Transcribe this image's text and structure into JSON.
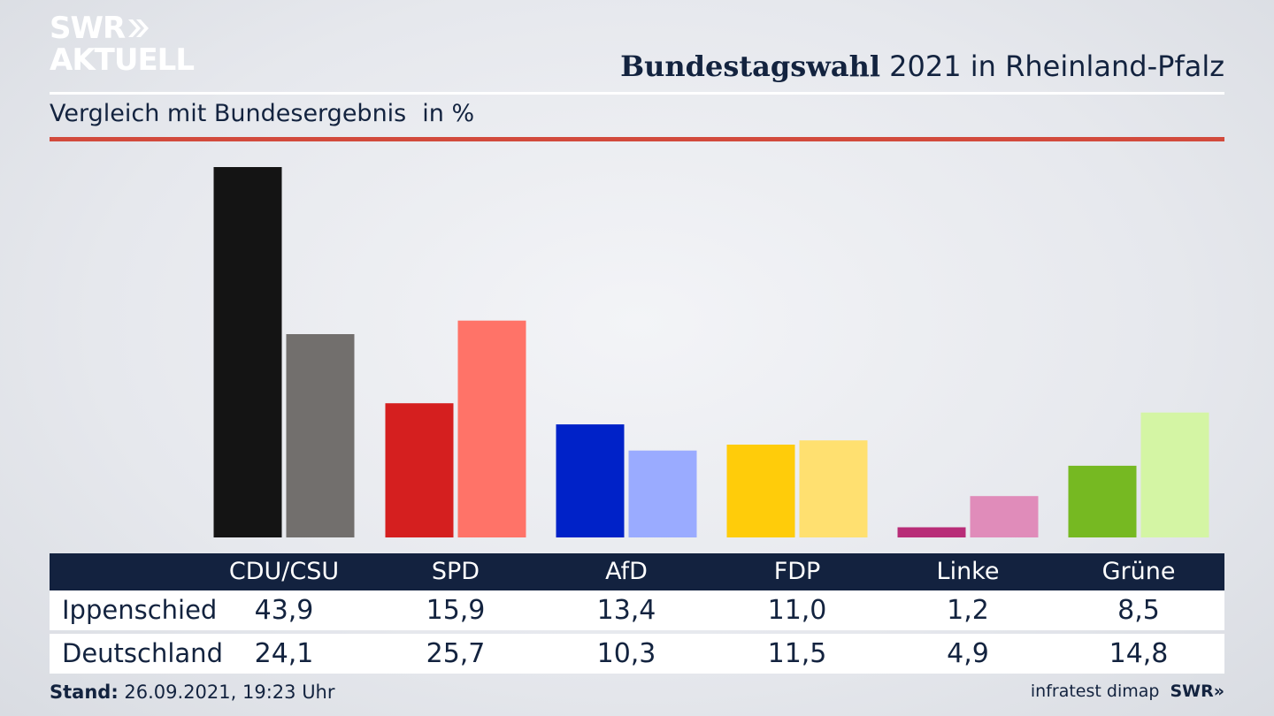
{
  "brand": {
    "line1": "SWR",
    "line2": "AKTUELL",
    "footer_logo": "SWR"
  },
  "header": {
    "title_bold": "Bundestagswahl",
    "title_rest": "2021 in Rheinland-Pfalz"
  },
  "subtitle": {
    "text": "Vergleich mit Bundesergebnis",
    "unit": "in %"
  },
  "footer": {
    "stand_label": "Stand:",
    "stand_value": "26.09.2021, 19:23 Uhr",
    "source": "infratest dimap"
  },
  "colors": {
    "navy": "#13223f",
    "accent_red": "#d24a3c"
  },
  "chart_data": {
    "type": "bar",
    "categories": [
      "CDU/CSU",
      "SPD",
      "AfD",
      "FDP",
      "Linke",
      "Grüne"
    ],
    "series": [
      {
        "name": "Ippenschied",
        "values": [
          43.9,
          15.9,
          13.4,
          11.0,
          1.2,
          8.5
        ],
        "colors": [
          "#141414",
          "#d51f1f",
          "#0022c8",
          "#ffcc0a",
          "#b82d78",
          "#76b922"
        ]
      },
      {
        "name": "Deutschland",
        "values": [
          24.1,
          25.7,
          10.3,
          11.5,
          4.9,
          14.8
        ],
        "colors": [
          "#726f6d",
          "#ff7368",
          "#9aabff",
          "#ffe070",
          "#e08cba",
          "#d4f5a4"
        ]
      }
    ],
    "series_display": [
      "43,9",
      "15,9",
      "13,4",
      "11,0",
      "1,2",
      "8,5",
      "24,1",
      "25,7",
      "10,3",
      "11,5",
      "4,9",
      "14,8"
    ],
    "ylim": [
      0,
      44
    ],
    "grid": false,
    "legend": "table-below"
  }
}
